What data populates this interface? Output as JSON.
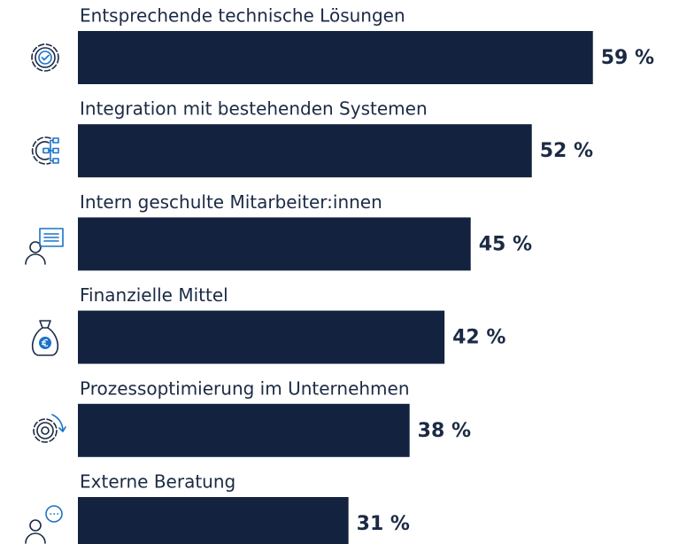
{
  "chart_data": {
    "type": "bar",
    "orientation": "horizontal",
    "color": "#13233f",
    "categories": [
      "Entsprechende technische Lösungen",
      "Integration mit bestehenden Systemen",
      "Intern geschulte Mitarbeiter:innen",
      "Finanzielle Mittel",
      "Prozessoptimierung im Unternehmen",
      "Externe Beratung"
    ],
    "values": [
      59,
      52,
      45,
      42,
      38,
      31
    ],
    "value_labels": [
      "59 %",
      "52 %",
      "45 %",
      "42 %",
      "38 %",
      "31 %"
    ]
  }
}
